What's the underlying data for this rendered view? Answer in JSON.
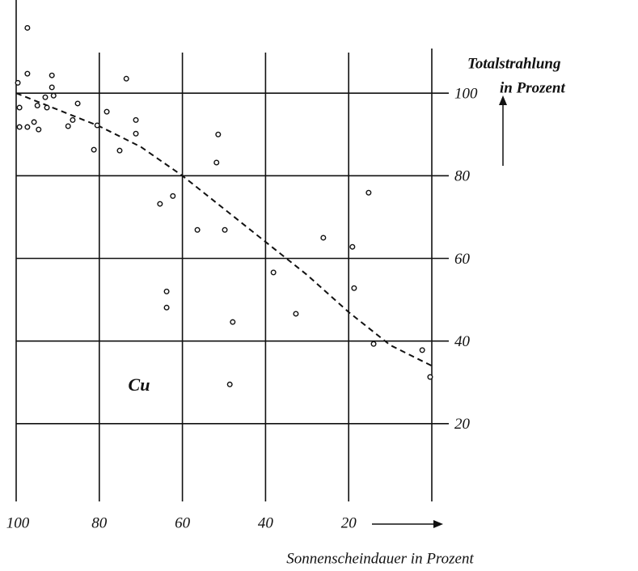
{
  "chart_data": {
    "type": "scatter",
    "ylabel": [
      "Totalstrahlung",
      "in Prozent"
    ],
    "xlabel": "Sonnenscheindauer in Prozent",
    "annotation": "Cu",
    "xlim": [
      100,
      0
    ],
    "ylim": [
      0,
      120
    ],
    "xticks": [
      100,
      80,
      60,
      40,
      20
    ],
    "yticks": [
      20,
      40,
      60,
      80,
      100
    ],
    "grid": true,
    "color": "#111111",
    "x": [
      97.3,
      99.6,
      97.3,
      91.4,
      91.4,
      99.2,
      99.2,
      97.3,
      95.7,
      94.9,
      94.6,
      93,
      92.6,
      91,
      87.5,
      86.4,
      85.2,
      81.3,
      80.5,
      78.2,
      75.1,
      73.5,
      71.2,
      71.2,
      65.4,
      62.3,
      63.8,
      63.8,
      56.4,
      51.4,
      51.8,
      49.8,
      47.9,
      48.6,
      38.1,
      32.7,
      26.1,
      19.1,
      18.7,
      15.2,
      14,
      2.3,
      0.4
    ],
    "values": [
      115.8,
      102.5,
      104.7,
      104.3,
      101.4,
      96.5,
      91.8,
      91.8,
      93,
      97,
      91.2,
      99,
      96.5,
      99.4,
      92,
      93.5,
      97.5,
      86.3,
      92.2,
      95.5,
      86.1,
      103.5,
      93.5,
      90.2,
      73.2,
      75.1,
      52,
      48.1,
      66.9,
      90,
      83.2,
      66.9,
      44.6,
      29.5,
      56.6,
      46.6,
      65,
      62.8,
      52.8,
      75.9,
      39.3,
      37.8,
      31.3
    ],
    "curve": {
      "x": [
        100,
        90,
        80,
        70,
        60,
        50,
        40,
        30,
        20,
        10,
        0
      ],
      "values": [
        100,
        96,
        92,
        87,
        80,
        72,
        64,
        56,
        47,
        39,
        34
      ]
    }
  }
}
